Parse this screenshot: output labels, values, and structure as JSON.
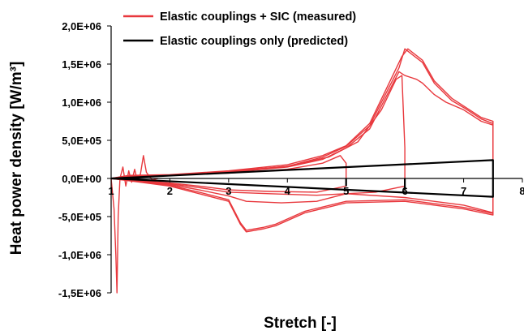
{
  "chart_data": {
    "type": "line",
    "title": "",
    "xlabel": "Stretch [-]",
    "ylabel": "Heat power density [W/m³]",
    "xlim": [
      1,
      8
    ],
    "ylim": [
      -1500000,
      2000000
    ],
    "grid": false,
    "legend_position": "top",
    "x_ticks": [
      {
        "value": 1,
        "label": "1"
      },
      {
        "value": 2,
        "label": "2"
      },
      {
        "value": 3,
        "label": "3"
      },
      {
        "value": 4,
        "label": "4"
      },
      {
        "value": 5,
        "label": "5"
      },
      {
        "value": 6,
        "label": "6"
      },
      {
        "value": 7,
        "label": "7"
      },
      {
        "value": 8,
        "label": "8"
      }
    ],
    "y_ticks": [
      {
        "value": 2000000,
        "label": "2,0E+06"
      },
      {
        "value": 1500000,
        "label": "1,5E+06"
      },
      {
        "value": 1000000,
        "label": "1,0E+06"
      },
      {
        "value": 500000,
        "label": "5,0E+05"
      },
      {
        "value": 0,
        "label": "0,0E+00"
      },
      {
        "value": -500000,
        "label": "-5,0E+05"
      },
      {
        "value": -1000000,
        "label": "-1,0E+06"
      },
      {
        "value": -1500000,
        "label": "-1,5E+06"
      }
    ],
    "series": [
      {
        "name": "Elastic couplings + SIC (measured)",
        "color": "#e8383d",
        "loops": [
          {
            "points": [
              [
                1,
                0
              ],
              [
                1.3,
                30000
              ],
              [
                2,
                40000
              ],
              [
                3,
                80000
              ],
              [
                4,
                150000
              ],
              [
                4.6,
                250000
              ],
              [
                5,
                400000
              ],
              [
                5.4,
                650000
              ],
              [
                5.7,
                1100000
              ],
              [
                5.9,
                1400000
              ],
              [
                6.0,
                1350000
              ],
              [
                6.2,
                1300000
              ],
              [
                6.3,
                1250000
              ],
              [
                6.5,
                1100000
              ],
              [
                6.7,
                1000000
              ],
              [
                7.0,
                900000
              ],
              [
                7.3,
                750000
              ],
              [
                7.5,
                700000
              ],
              [
                7.5,
                -450000
              ],
              [
                7.0,
                -350000
              ],
              [
                6.0,
                -250000
              ],
              [
                5.0,
                -200000
              ],
              [
                4.5,
                -300000
              ],
              [
                3.9,
                -320000
              ],
              [
                3.3,
                -300000
              ],
              [
                3.0,
                -230000
              ],
              [
                2.5,
                -150000
              ],
              [
                2,
                -80000
              ],
              [
                1.5,
                -40000
              ],
              [
                1,
                0
              ]
            ]
          },
          {
            "points": [
              [
                1,
                0
              ],
              [
                1.3,
                40000
              ],
              [
                2,
                50000
              ],
              [
                3,
                100000
              ],
              [
                4,
                180000
              ],
              [
                4.6,
                300000
              ],
              [
                5,
                430000
              ],
              [
                5.4,
                720000
              ],
              [
                5.7,
                1200000
              ],
              [
                5.95,
                1600000
              ],
              [
                6.05,
                1700000
              ],
              [
                6.3,
                1550000
              ],
              [
                6.5,
                1280000
              ],
              [
                6.8,
                1050000
              ],
              [
                7.0,
                950000
              ],
              [
                7.3,
                800000
              ],
              [
                7.5,
                750000
              ],
              [
                7.5,
                -480000
              ],
              [
                7.0,
                -400000
              ],
              [
                6.0,
                -300000
              ],
              [
                5.0,
                -320000
              ],
              [
                4.3,
                -450000
              ],
              [
                3.8,
                -620000
              ],
              [
                3.6,
                -660000
              ],
              [
                3.3,
                -700000
              ],
              [
                3.2,
                -600000
              ],
              [
                3.0,
                -300000
              ],
              [
                2.5,
                -200000
              ],
              [
                2,
                -100000
              ],
              [
                1.5,
                -50000
              ],
              [
                1,
                0
              ]
            ]
          },
          {
            "points": [
              [
                1,
                0
              ],
              [
                1.3,
                35000
              ],
              [
                2,
                45000
              ],
              [
                3,
                90000
              ],
              [
                4,
                160000
              ],
              [
                4.6,
                280000
              ],
              [
                5,
                420000
              ],
              [
                5.4,
                690000
              ],
              [
                5.7,
                1150000
              ],
              [
                5.9,
                1450000
              ],
              [
                6.0,
                1700000
              ],
              [
                6.3,
                1520000
              ],
              [
                6.5,
                1250000
              ],
              [
                6.8,
                1020000
              ],
              [
                7.0,
                930000
              ],
              [
                7.3,
                780000
              ],
              [
                7.5,
                720000
              ],
              [
                7.5,
                -460000
              ],
              [
                7.0,
                -380000
              ],
              [
                6.0,
                -280000
              ],
              [
                5.0,
                -300000
              ],
              [
                4.3,
                -430000
              ],
              [
                3.8,
                -600000
              ],
              [
                3.6,
                -640000
              ],
              [
                3.3,
                -680000
              ],
              [
                3.2,
                -580000
              ],
              [
                3.0,
                -280000
              ],
              [
                2.5,
                -180000
              ],
              [
                2,
                -90000
              ],
              [
                1.5,
                -45000
              ],
              [
                1,
                0
              ]
            ]
          },
          {
            "points": [
              [
                1,
                0
              ],
              [
                1.3,
                30000
              ],
              [
                2,
                45000
              ],
              [
                3,
                90000
              ],
              [
                4,
                160000
              ],
              [
                4.7,
                280000
              ],
              [
                5.2,
                480000
              ],
              [
                5.6,
                900000
              ],
              [
                5.85,
                1300000
              ],
              [
                5.95,
                1350000
              ],
              [
                6.0,
                400000
              ],
              [
                6.0,
                -100000
              ],
              [
                5.5,
                -180000
              ],
              [
                4.5,
                -220000
              ],
              [
                3.7,
                -200000
              ],
              [
                3.0,
                -180000
              ],
              [
                2.5,
                -120000
              ],
              [
                2,
                -70000
              ],
              [
                1.5,
                -30000
              ],
              [
                1,
                0
              ]
            ]
          },
          {
            "points": [
              [
                1,
                0
              ],
              [
                1.3,
                30000
              ],
              [
                2,
                40000
              ],
              [
                3,
                70000
              ],
              [
                4,
                120000
              ],
              [
                4.6,
                200000
              ],
              [
                4.9,
                300000
              ],
              [
                5.0,
                200000
              ],
              [
                5.0,
                -100000
              ],
              [
                4.5,
                -180000
              ],
              [
                3.7,
                -170000
              ],
              [
                3.0,
                -150000
              ],
              [
                2.5,
                -100000
              ],
              [
                2,
                -60000
              ],
              [
                1.5,
                -30000
              ],
              [
                1,
                0
              ]
            ]
          },
          {
            "points": [
              [
                1.0,
                0
              ],
              [
                1.05,
                -400000
              ],
              [
                1.08,
                -1000000
              ],
              [
                1.1,
                -1500000
              ],
              [
                1.12,
                -500000
              ],
              [
                1.15,
                0
              ],
              [
                1.2,
                150000
              ],
              [
                1.25,
                -100000
              ],
              [
                1.3,
                100000
              ],
              [
                1.35,
                -50000
              ],
              [
                1.4,
                120000
              ],
              [
                1.45,
                -40000
              ],
              [
                1.5,
                60000
              ],
              [
                1.55,
                300000
              ],
              [
                1.6,
                80000
              ],
              [
                1.7,
                -20000
              ],
              [
                1.8,
                0
              ]
            ]
          }
        ]
      },
      {
        "name": "Elastic couplings only (predicted)",
        "color": "#000000",
        "loops": [
          {
            "points": [
              [
                1,
                0
              ],
              [
                7.5,
                240000
              ],
              [
                7.5,
                -240000
              ],
              [
                1,
                0
              ]
            ]
          },
          {
            "points": [
              [
                5,
                0
              ],
              [
                5,
                -100000
              ]
            ]
          },
          {
            "points": [
              [
                6,
                0
              ],
              [
                6,
                -150000
              ]
            ]
          }
        ]
      }
    ]
  }
}
